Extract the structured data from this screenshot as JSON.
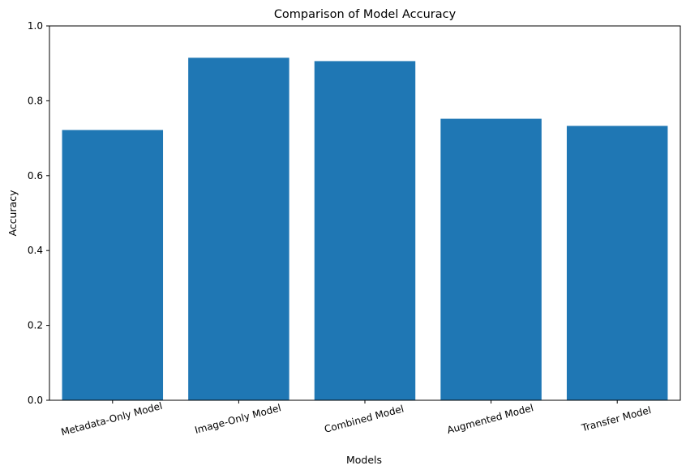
{
  "chart_data": {
    "type": "bar",
    "title": "Comparison of Model Accuracy",
    "xlabel": "Models",
    "ylabel": "Accuracy",
    "categories": [
      "Metadata-Only Model",
      "Image-Only Model",
      "Combined Model",
      "Augmented Model",
      "Transfer Model"
    ],
    "values": [
      0.722,
      0.915,
      0.906,
      0.752,
      0.733
    ],
    "ylim": [
      0,
      1.0
    ],
    "yticks": [
      "0.0",
      "0.2",
      "0.4",
      "0.6",
      "0.8",
      "1.0"
    ],
    "grid": false,
    "bar_color": "#1f77b4",
    "xtick_rotation_deg": 15
  }
}
